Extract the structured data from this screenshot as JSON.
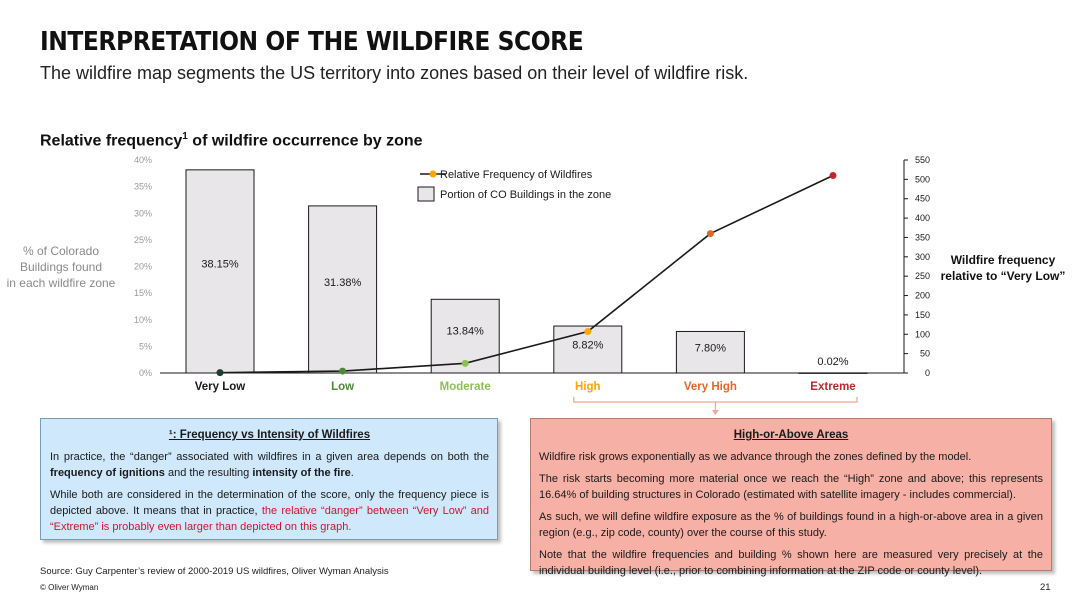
{
  "header": {
    "title": "INTERPRETATION OF THE WILDFIRE SCORE",
    "subtitle": "The wildfire map segments the US territory into zones based on their level of wildfire risk."
  },
  "chart_data": {
    "type": "bar+line",
    "title_main": "Relative frequency",
    "title_sup": "1",
    "title_rest": " of wildfire occurrence by zone",
    "categories": [
      "Very Low",
      "Low",
      "Moderate",
      "High",
      "Very High",
      "Extreme"
    ],
    "category_colors": [
      "#1a1a1a",
      "#4c8a3a",
      "#8cc152",
      "#ffa500",
      "#e0672a",
      "#c0262d"
    ],
    "bar_series": {
      "name": "Portion of CO Buildings in the zone",
      "values": [
        38.15,
        31.38,
        13.84,
        8.82,
        7.8,
        0.02
      ],
      "labels": [
        "38.15%",
        "31.38%",
        "13.84%",
        "8.82%",
        "7.80%",
        "0.02%"
      ],
      "fill": "#e8e6e9",
      "stroke": "#1a1a1a"
    },
    "line_series": {
      "name": "Relative Frequency of Wildfires",
      "values": [
        1,
        5,
        25,
        107,
        360,
        510
      ],
      "line_color": "#1a1a1a",
      "point_colors": [
        "#1e3d2f",
        "#4c8a3a",
        "#8cc152",
        "#ffa500",
        "#e0672a",
        "#c0262d"
      ]
    },
    "yleft": {
      "label_lines": [
        "% of Colorado",
        "Buildings found",
        "in each wildfire zone"
      ],
      "ticks": [
        "0%",
        "5%",
        "10%",
        "15%",
        "20%",
        "25%",
        "30%",
        "35%",
        "40%"
      ],
      "range": [
        0,
        40
      ]
    },
    "yright": {
      "label_lines": [
        "Wildfire frequency",
        "relative  to “Very Low”"
      ],
      "ticks": [
        "0",
        "50",
        "100",
        "150",
        "200",
        "250",
        "300",
        "350",
        "400",
        "450",
        "500",
        "550"
      ],
      "range": [
        0,
        550
      ]
    }
  },
  "note_box": {
    "title": "¹: Frequency vs Intensity of Wildfires",
    "p1_a": "In practice, the “danger” associated with wildfires in a given area depends on both the ",
    "p1_b": "frequency of ignitions",
    "p1_c": " and the resulting ",
    "p1_d": "intensity of the fire",
    "p1_e": ".",
    "p2_a": "While both are considered in the determination of the score, only the frequency piece is depicted above. It means that in practice, ",
    "p2_b": "the relative “danger” between “Very Low” and “Extreme” is probably even larger than depicted on this graph."
  },
  "high_box": {
    "title": "High-or-Above Areas",
    "p1": "Wildfire risk grows exponentially as we advance through the zones defined by the model.",
    "p2": "The risk starts becoming more material once we reach the “High” zone and above; this represents 16.64% of building structures in Colorado (estimated with satellite imagery - includes commercial).",
    "p3": "As such, we will define wildfire exposure as the % of buildings found in a high-or-above area in a given region (e.g., zip code, county) over the course of this study.",
    "p4": "Note that the wildfire frequencies and building % shown here are measured very precisely at the individual building level (i.e., prior to combining information at the ZIP code or county level)."
  },
  "footer": {
    "source": "Source: Guy Carpenter’s review of 2000-2019 US wildfires, Oliver Wyman Analysis",
    "copyright": "© Oliver Wyman",
    "page": "21"
  }
}
